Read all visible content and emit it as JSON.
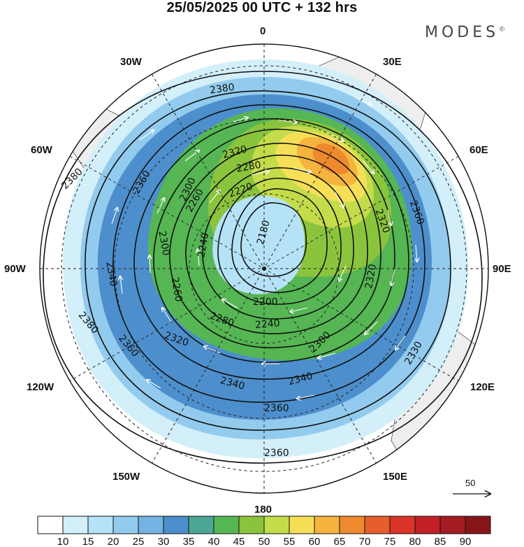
{
  "title": "25/05/2025  00 UTC  + 132 hrs",
  "brand": "MODES",
  "brand_mark": "©",
  "longitude_labels": {
    "top": "0",
    "top_right": "30E",
    "upper_right": "60E",
    "right": "90E",
    "lower_right": "120E",
    "bottom_right": "150E",
    "bottom": "180",
    "bottom_left": "150W",
    "lower_left": "120W",
    "left": "90W",
    "upper_left": "60W",
    "top_left": "30W"
  },
  "contour_labels": {
    "c2380a": "2380",
    "c2380b": "2380",
    "c2380c": "2380",
    "c2360a": "2360",
    "c2360b": "2360",
    "c2360c": "2360",
    "c2360d": "2360",
    "c2360e": "2360",
    "c2340a": "2340",
    "c2340b": "2340",
    "c2340c": "2340",
    "c2330a": "2330",
    "c2320a": "2320",
    "c2320b": "2320",
    "c2320c": "2320",
    "c2320d": "2320",
    "c2300a": "2300",
    "c2300b": "2300",
    "c2300c": "2300",
    "c2280a": "2280",
    "c2280b": "2280",
    "c2260a": "2260",
    "c2260b": "2260",
    "c2240a": "2240",
    "c2240b": "2240",
    "c2220a": "2220",
    "c2200a": "2200",
    "c2180a": "2180"
  },
  "reference_vector": "50",
  "colorbar": {
    "ticks": [
      "10",
      "15",
      "20",
      "25",
      "30",
      "35",
      "40",
      "45",
      "50",
      "55",
      "60",
      "65",
      "70",
      "75",
      "80",
      "85",
      "90"
    ],
    "colors": [
      "#ffffff",
      "#d3effa",
      "#b5e2f7",
      "#93cbee",
      "#74b3e3",
      "#4d8fcc",
      "#4ca695",
      "#55b653",
      "#8ac43d",
      "#c5dc4a",
      "#f6df57",
      "#f5b43e",
      "#ee8a2e",
      "#e65e2b",
      "#da3528",
      "#c22026",
      "#a41c22",
      "#861517"
    ]
  }
}
